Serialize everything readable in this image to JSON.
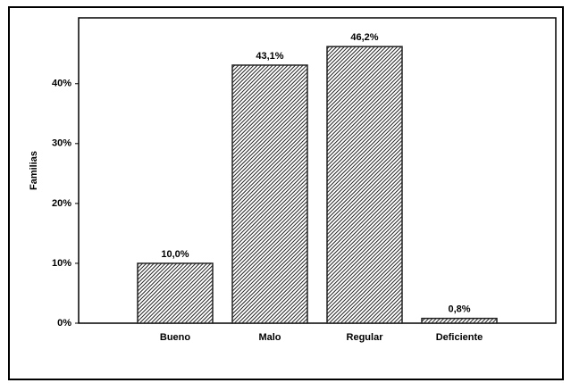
{
  "chart_data": {
    "type": "bar",
    "y_label": "Familias",
    "categories": [
      "Bueno",
      "Malo",
      "Regular",
      "Deficiente"
    ],
    "values": [
      10.0,
      43.1,
      46.2,
      0.8
    ],
    "value_labels": [
      "10,0%",
      "43,1%",
      "46,2%",
      "0,8%"
    ],
    "color": "#222222",
    "ylim": [
      0,
      51
    ],
    "yticks": [
      {
        "value": 0,
        "label": "0%"
      },
      {
        "value": 10,
        "label": "10%"
      },
      {
        "value": 20,
        "label": "20%"
      },
      {
        "value": 30,
        "label": "30%"
      },
      {
        "value": 40,
        "label": "40%"
      }
    ]
  }
}
